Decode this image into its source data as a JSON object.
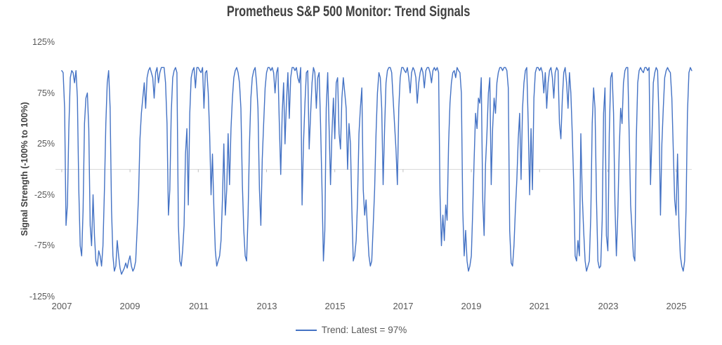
{
  "title": "Prometheus S&P 500 Monitor: Trend Signals",
  "y_axis_title": "Signal Strength (-100% to 100%)",
  "legend": {
    "label": "Trend: Latest = 97%"
  },
  "colors": {
    "line": "#4472C4",
    "title_text": "#404040",
    "axis_text": "#595959",
    "gridline": "#D9D9D9",
    "tick_mark": "#BFBFBF"
  },
  "chart_data": {
    "type": "line",
    "title": "Prometheus S&P 500 Monitor: Trend Signals",
    "xlabel": "",
    "ylabel": "Signal Strength (-100% to 100%)",
    "ylim": [
      -125,
      125
    ],
    "x_range": [
      2006.94,
      2025.46
    ],
    "grid": "zero-line-only",
    "legend_position": "bottom-center",
    "y_ticks": [
      "125%",
      "75%",
      "25%",
      "-25%",
      "-75%",
      "-125%"
    ],
    "y_tick_values": [
      125,
      75,
      25,
      -25,
      -75,
      -125
    ],
    "x_ticks": [
      "2007",
      "2009",
      "2011",
      "2013",
      "2015",
      "2017",
      "2019",
      "2021",
      "2023",
      "2025"
    ],
    "x_tick_values": [
      2007,
      2009,
      2011,
      2013,
      2015,
      2017,
      2019,
      2021,
      2023,
      2025
    ],
    "latest_value": "97%",
    "series": [
      {
        "name": "Trend: Latest = 97%",
        "start_year": 2007,
        "points_per_year": 24,
        "values": [
          97,
          95,
          60,
          -55,
          -35,
          40,
          90,
          97,
          95,
          85,
          97,
          70,
          -20,
          -75,
          -85,
          -40,
          45,
          70,
          75,
          40,
          -55,
          -75,
          -25,
          -65,
          -90,
          -95,
          -80,
          -85,
          -95,
          -75,
          -20,
          45,
          85,
          97,
          60,
          -40,
          -85,
          -100,
          -95,
          -70,
          -85,
          -97,
          -103,
          -100,
          -97,
          -92,
          -97,
          -90,
          -85,
          -95,
          -100,
          -97,
          -90,
          -60,
          -25,
          30,
          55,
          70,
          85,
          60,
          90,
          97,
          100,
          95,
          90,
          70,
          95,
          100,
          85,
          95,
          100,
          100,
          100,
          85,
          45,
          -45,
          -20,
          55,
          90,
          97,
          100,
          95,
          -55,
          -90,
          -95,
          -80,
          -55,
          15,
          40,
          -35,
          55,
          90,
          97,
          100,
          80,
          100,
          100,
          97,
          95,
          100,
          60,
          95,
          97,
          75,
          35,
          -25,
          15,
          -40,
          -80,
          -95,
          -90,
          -85,
          -70,
          -30,
          25,
          -45,
          -20,
          35,
          -15,
          40,
          70,
          90,
          97,
          100,
          95,
          85,
          60,
          -15,
          -60,
          -85,
          -90,
          -45,
          25,
          70,
          90,
          97,
          100,
          85,
          60,
          -20,
          -55,
          10,
          45,
          80,
          95,
          100,
          100,
          97,
          100,
          95,
          75,
          95,
          100,
          45,
          -5,
          55,
          85,
          25,
          65,
          95,
          50,
          90,
          100,
          100,
          97,
          100,
          90,
          85,
          100,
          -35,
          25,
          65,
          95,
          97,
          20,
          55,
          85,
          100,
          95,
          60,
          90,
          95,
          45,
          -20,
          -90,
          -60,
          60,
          95,
          40,
          -15,
          35,
          70,
          30,
          85,
          90,
          35,
          20,
          70,
          90,
          75,
          60,
          0,
          45,
          25,
          -40,
          -90,
          -85,
          -70,
          -30,
          35,
          60,
          80,
          -20,
          -45,
          -30,
          -60,
          -85,
          -95,
          -90,
          -55,
          -20,
          35,
          75,
          95,
          90,
          60,
          -15,
          40,
          85,
          97,
          100,
          100,
          95,
          70,
          45,
          20,
          -15,
          60,
          90,
          100,
          100,
          97,
          95,
          100,
          90,
          75,
          95,
          100,
          97,
          90,
          65,
          85,
          95,
          100,
          95,
          80,
          97,
          100,
          100,
          95,
          85,
          97,
          100,
          97,
          100,
          95,
          -25,
          -75,
          -45,
          -70,
          -35,
          -50,
          25,
          65,
          85,
          95,
          97,
          90,
          100,
          97,
          95,
          75,
          -40,
          -85,
          -60,
          -90,
          -100,
          -95,
          -85,
          -40,
          10,
          55,
          40,
          70,
          65,
          90,
          -30,
          -65,
          5,
          35,
          75,
          90,
          -15,
          40,
          70,
          55,
          85,
          95,
          100,
          100,
          97,
          100,
          100,
          97,
          80,
          -60,
          -92,
          -95,
          -75,
          -40,
          -10,
          30,
          55,
          -10,
          60,
          85,
          97,
          100,
          45,
          -25,
          40,
          -20,
          70,
          95,
          100,
          100,
          97,
          100,
          95,
          75,
          95,
          60,
          85,
          97,
          100,
          90,
          70,
          95,
          100,
          97,
          45,
          30,
          70,
          95,
          100,
          85,
          60,
          95,
          75,
          35,
          -15,
          -85,
          -90,
          -70,
          -85,
          35,
          -25,
          -60,
          -90,
          -100,
          -95,
          -90,
          -45,
          45,
          80,
          60,
          -30,
          -90,
          -97,
          -95,
          -50,
          55,
          80,
          -65,
          -80,
          35,
          90,
          95,
          55,
          -35,
          -85,
          -45,
          20,
          60,
          45,
          85,
          97,
          100,
          100,
          35,
          -35,
          -60,
          -85,
          -90,
          30,
          85,
          97,
          100,
          97,
          95,
          100,
          100,
          97,
          100,
          -15,
          30,
          85,
          95,
          100,
          97,
          50,
          -45,
          25,
          60,
          90,
          97,
          100,
          97,
          95,
          70,
          20,
          -30,
          -45,
          15,
          -55,
          -85,
          -95,
          -100,
          -90,
          -40,
          55,
          95,
          100,
          97
        ]
      }
    ]
  }
}
